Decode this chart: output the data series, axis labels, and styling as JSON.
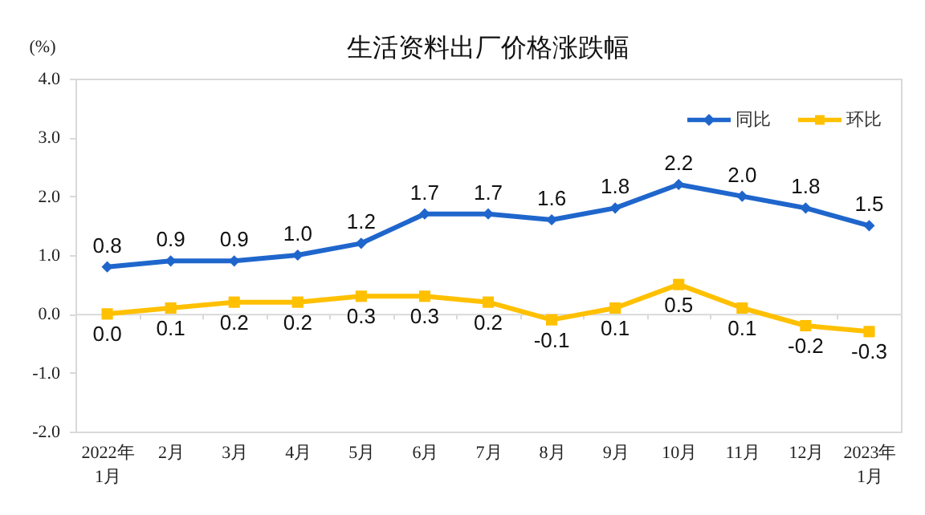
{
  "chart_data": {
    "type": "line",
    "title": "生活资料出厂价格涨跌幅",
    "ylabel": "(%)",
    "categories": [
      "2022年\n1月",
      "2月",
      "3月",
      "4月",
      "5月",
      "6月",
      "7月",
      "8月",
      "9月",
      "10月",
      "11月",
      "12月",
      "2023年\n1月"
    ],
    "series": [
      {
        "name": "同比",
        "color": "#1f66cc",
        "marker": "diamond",
        "values": [
          0.8,
          0.9,
          0.9,
          1.0,
          1.2,
          1.7,
          1.7,
          1.6,
          1.8,
          2.2,
          2.0,
          1.8,
          1.5
        ],
        "value_labels": [
          "0.8",
          "0.9",
          "0.9",
          "1.0",
          "1.2",
          "1.7",
          "1.7",
          "1.6",
          "1.8",
          "2.2",
          "2.0",
          "1.8",
          "1.5"
        ]
      },
      {
        "name": "环比",
        "color": "#ffc000",
        "marker": "square",
        "values": [
          0.0,
          0.1,
          0.2,
          0.2,
          0.3,
          0.3,
          0.2,
          -0.1,
          0.1,
          0.5,
          0.1,
          -0.2,
          -0.3
        ],
        "value_labels": [
          "0.0",
          "0.1",
          "0.2",
          "0.2",
          "0.3",
          "0.3",
          "0.2",
          "-0.1",
          "0.1",
          "0.5",
          "0.1",
          "-0.2",
          "-0.3"
        ]
      }
    ],
    "ylim": [
      -2,
      4
    ],
    "yticks": [
      {
        "value": -2,
        "label": "-2.0"
      },
      {
        "value": -1,
        "label": "-1.0"
      },
      {
        "value": 0,
        "label": "0.0"
      },
      {
        "value": 1,
        "label": "1.0"
      },
      {
        "value": 2,
        "label": "2.0"
      },
      {
        "value": 3,
        "label": "3.0"
      },
      {
        "value": 4,
        "label": "4.0"
      }
    ],
    "legend": "top right"
  }
}
